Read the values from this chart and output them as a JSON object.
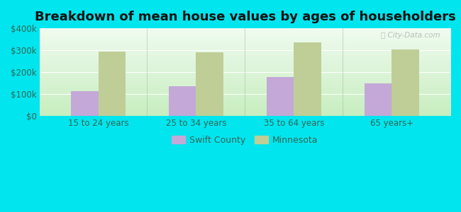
{
  "title": "Breakdown of mean house values by ages of householders",
  "categories": [
    "15 to 24 years",
    "25 to 34 years",
    "35 to 64 years",
    "65 years+"
  ],
  "swift_county": [
    112000,
    135000,
    178000,
    150000
  ],
  "minnesota": [
    295000,
    292000,
    335000,
    305000
  ],
  "swift_color": "#c4a8d8",
  "minnesota_color": "#bfce96",
  "background_color": "#00e5ee",
  "ylim": [
    0,
    400000
  ],
  "yticks": [
    0,
    100000,
    200000,
    300000,
    400000
  ],
  "ytick_labels": [
    "$0",
    "$100k",
    "$200k",
    "$300k",
    "$400k"
  ],
  "legend_labels": [
    "Swift County",
    "Minnesota"
  ],
  "watermark": "City-Data.com",
  "bar_width": 0.28,
  "title_fontsize": 13,
  "tick_fontsize": 8.5
}
